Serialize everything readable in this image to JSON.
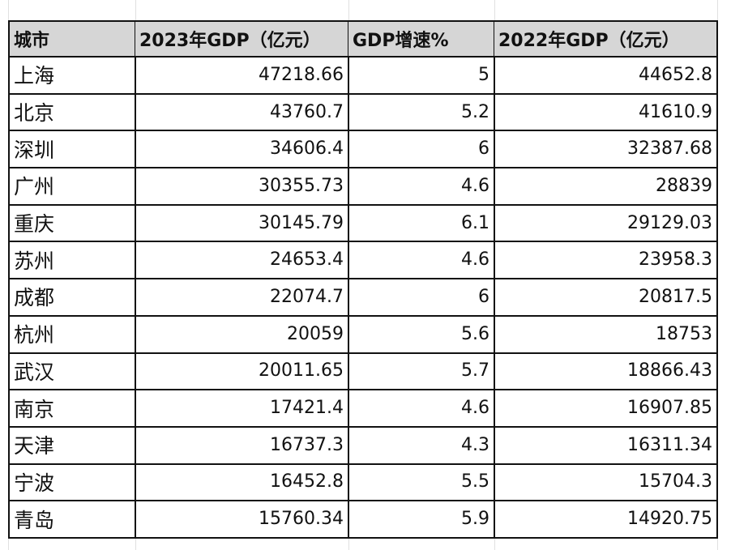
{
  "table": {
    "header": [
      "城市",
      "2023年GDP（亿元）",
      "GDP增速%",
      "2022年GDP（亿元）"
    ],
    "rows": [
      [
        "上海",
        47218.66,
        5,
        44652.8
      ],
      [
        "北京",
        43760.7,
        5.2,
        41610.9
      ],
      [
        "深圳",
        34606.4,
        6,
        32387.68
      ],
      [
        "广州",
        30355.73,
        4.6,
        28839
      ],
      [
        "重庆",
        30145.79,
        6.1,
        29129.03
      ],
      [
        "苏州",
        24653.4,
        4.6,
        23958.3
      ],
      [
        "成都",
        22074.7,
        6,
        20817.5
      ],
      [
        "杭州",
        20059,
        5.6,
        18753
      ],
      [
        "武汉",
        20011.65,
        5.7,
        18866.43
      ],
      [
        "南京",
        17421.4,
        4.6,
        16907.85
      ],
      [
        "天津",
        16737.3,
        4.3,
        16311.34
      ],
      [
        "宁波",
        16452.8,
        5.5,
        15704.3
      ],
      [
        "青岛",
        15760.34,
        5.9,
        14920.75
      ]
    ]
  }
}
